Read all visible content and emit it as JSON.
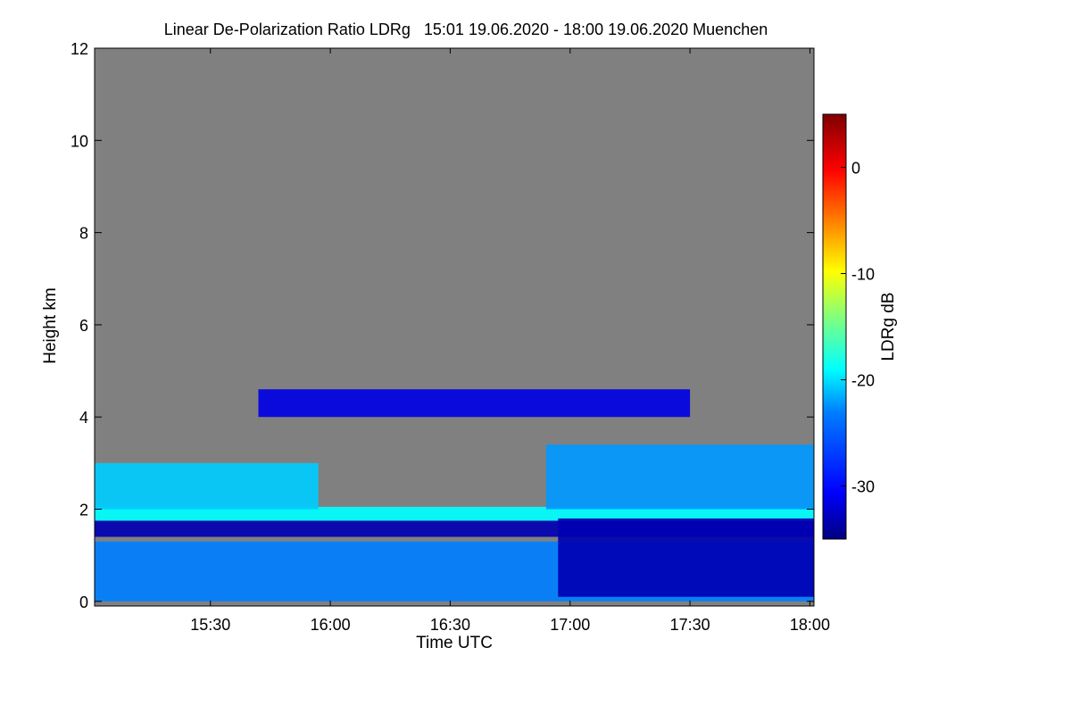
{
  "chart_data": {
    "type": "heatmap",
    "title": "Linear De-Polarization Ratio LDRg   15:01 19.06.2020 - 18:00 19.06.2020 Muenchen",
    "xlabel": "Time UTC",
    "ylabel": "Height km",
    "x_range_hours": [
      15.017,
      18.017
    ],
    "x_ticks": [
      {
        "label": "15:30",
        "value": 15.5
      },
      {
        "label": "16:00",
        "value": 16.0
      },
      {
        "label": "16:30",
        "value": 16.5
      },
      {
        "label": "17:00",
        "value": 17.0
      },
      {
        "label": "17:30",
        "value": 17.5
      },
      {
        "label": "18:00",
        "value": 18.0
      }
    ],
    "y_range": [
      -0.1,
      12.0
    ],
    "y_ticks": [
      0,
      2,
      4,
      6,
      8,
      10,
      12
    ],
    "colorbar": {
      "label": "LDRg dB",
      "range": [
        -35,
        5
      ],
      "ticks": [
        0,
        -10,
        -20,
        -30
      ],
      "colors": [
        "#00007f",
        "#0000ff",
        "#007fff",
        "#00ffff",
        "#7fff7f",
        "#ffff00",
        "#ff7f00",
        "#ff0000",
        "#7f0000"
      ]
    },
    "background_color": "#808080",
    "layers": [
      {
        "name": "near-surface noisy layer",
        "t_start": 15.017,
        "t_end": 18.017,
        "z_bottom": 0.0,
        "z_top": 1.3,
        "ldr_db": -25
      },
      {
        "name": "dark band below melting layer",
        "t_start": 15.017,
        "t_end": 18.017,
        "z_bottom": 1.4,
        "z_top": 1.75,
        "ldr_db": -33
      },
      {
        "name": "bright band",
        "t_start": 15.017,
        "t_end": 18.017,
        "z_bottom": 1.75,
        "z_top": 2.05,
        "ldr_db": -20
      },
      {
        "name": "ice layer west",
        "t_start": 15.017,
        "t_end": 15.95,
        "z_bottom": 2.0,
        "z_top": 3.0,
        "ldr_db": -22
      },
      {
        "name": "ice layer east",
        "t_start": 16.9,
        "t_end": 18.017,
        "z_bottom": 2.0,
        "z_top": 3.4,
        "ldr_db": -24
      },
      {
        "name": "upper cloud",
        "t_start": 15.7,
        "t_end": 17.5,
        "z_bottom": 4.0,
        "z_top": 4.6,
        "ldr_db": -31
      },
      {
        "name": "east lower block",
        "t_start": 16.95,
        "t_end": 18.017,
        "z_bottom": 0.1,
        "z_top": 1.8,
        "ldr_db": -33
      }
    ]
  }
}
